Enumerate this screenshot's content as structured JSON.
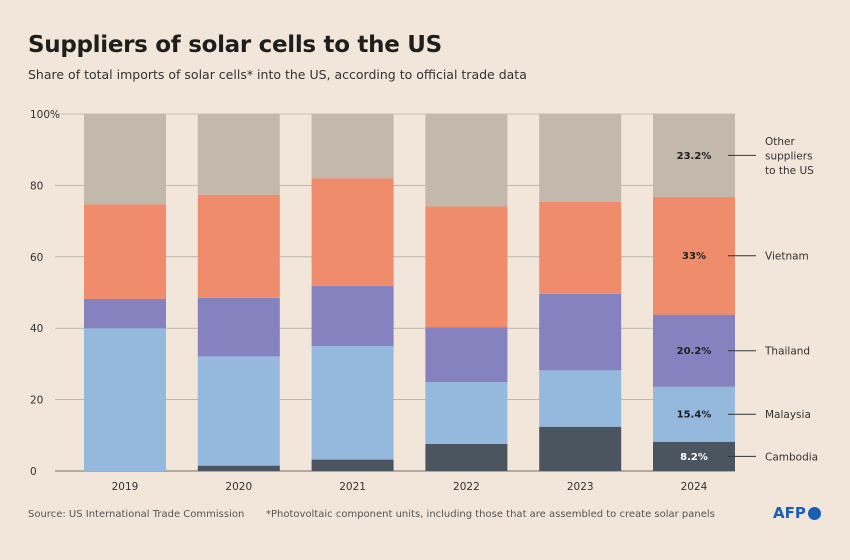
{
  "title": "Suppliers of solar cells to the US",
  "subtitle": "Share of total imports of solar cells* into the US, according to official trade data",
  "footer": {
    "source": "Source: US International Trade Commission",
    "note": "*Photovoltaic component units, including those that are assembled to create solar panels",
    "logo": "AFP"
  },
  "colors": {
    "background": "#f2e6da",
    "Cambodia": "#4a5560",
    "Malaysia": "#94b9dc",
    "Thailand": "#8582bf",
    "Vietnam": "#ef8c6c",
    "Other": "#c2b8ab"
  },
  "chart_data": {
    "type": "bar",
    "stacked": true,
    "categories": [
      "2019",
      "2020",
      "2021",
      "2022",
      "2023",
      "2024"
    ],
    "ylim": [
      0,
      100
    ],
    "yticks": [
      0,
      20,
      40,
      60,
      80,
      100
    ],
    "ytick_labels": [
      "0",
      "20",
      "40",
      "60",
      "80",
      "100%"
    ],
    "grid": true,
    "legend": "right, direct labels",
    "series": [
      {
        "name": "Cambodia",
        "values": [
          0,
          1.5,
          3.2,
          7.6,
          12.4,
          8.2
        ]
      },
      {
        "name": "Malaysia",
        "values": [
          40,
          30.6,
          31.8,
          17.3,
          15.8,
          15.4
        ]
      },
      {
        "name": "Thailand",
        "values": [
          8.2,
          16.4,
          16.8,
          15.4,
          21.4,
          20.2
        ]
      },
      {
        "name": "Vietnam",
        "values": [
          26.5,
          28.9,
          30.2,
          33.8,
          25.8,
          33.0
        ]
      },
      {
        "name": "Other suppliers to the US",
        "values": [
          25.3,
          22.6,
          18.0,
          25.9,
          24.6,
          23.2
        ]
      }
    ],
    "data_labels": {
      "category": "2024",
      "labels": [
        "8.2%",
        "15.4%",
        "20.2%",
        "33%",
        "23.2%"
      ]
    },
    "legend_labels": [
      {
        "lines": [
          "Cambodia"
        ]
      },
      {
        "lines": [
          "Malaysia"
        ]
      },
      {
        "lines": [
          "Thailand"
        ]
      },
      {
        "lines": [
          "Vietnam"
        ]
      },
      {
        "lines": [
          "Other",
          "suppliers",
          "to the US"
        ]
      }
    ]
  }
}
